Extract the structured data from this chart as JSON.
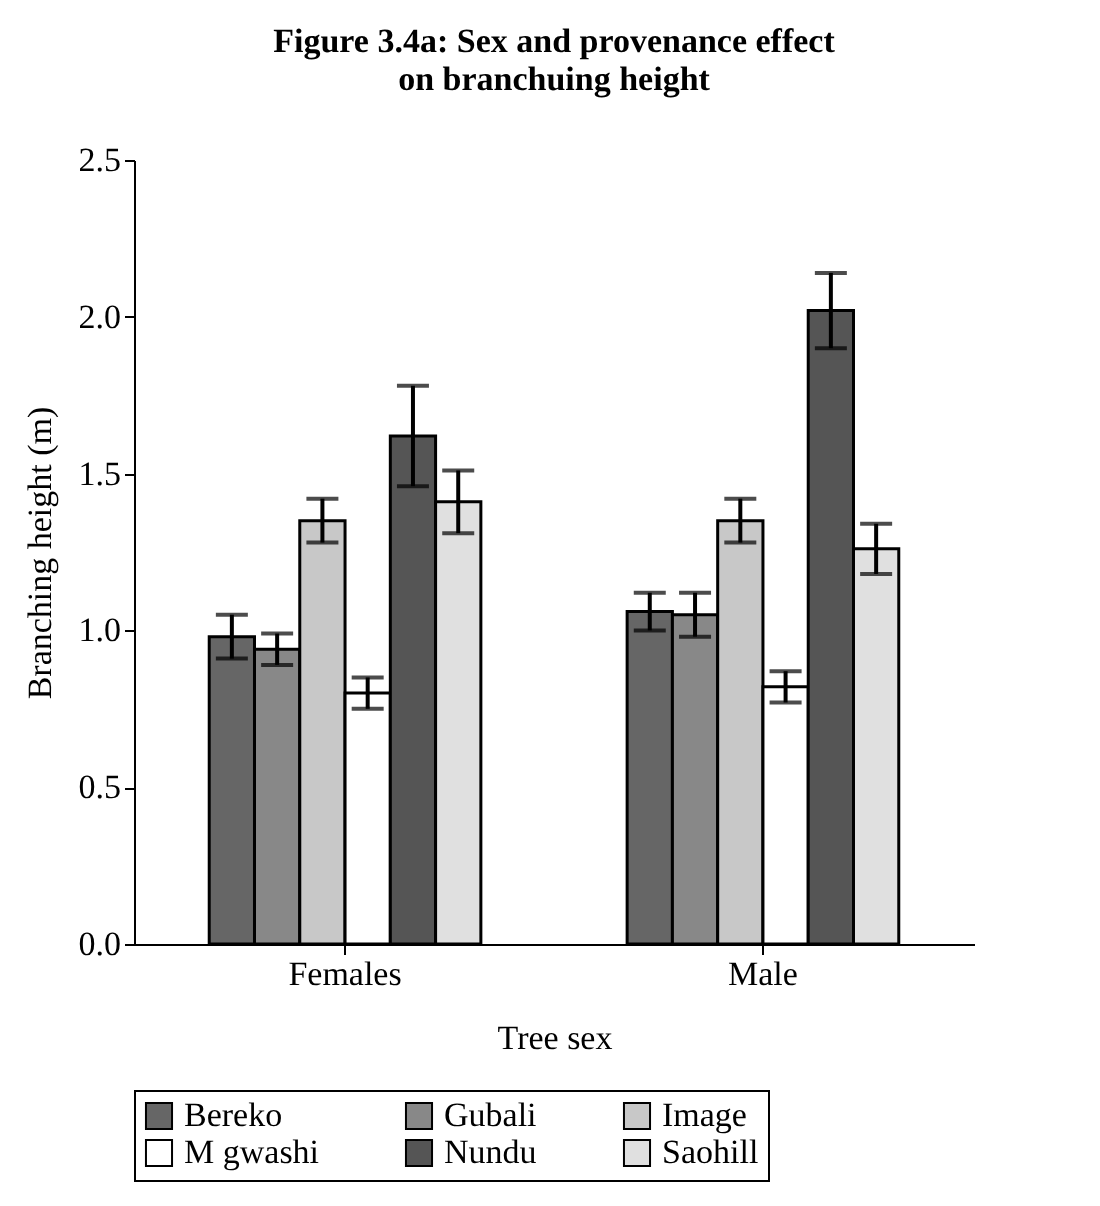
{
  "chart_data": {
    "type": "bar",
    "title": "Figure 3.4a: Sex and provenance effect on branchuing height",
    "xlabel": "Tree sex",
    "ylabel": "Branching height (m)",
    "categories": [
      "Females",
      "Male"
    ],
    "series": [
      {
        "name": "Bereko",
        "color": "#666666",
        "values": [
          0.98,
          1.06
        ],
        "errors": [
          0.07,
          0.06
        ]
      },
      {
        "name": "Gubali",
        "color": "#888888",
        "values": [
          0.94,
          1.05
        ],
        "errors": [
          0.05,
          0.07
        ]
      },
      {
        "name": "Image",
        "color": "#c8c8c8",
        "values": [
          1.35,
          1.35
        ],
        "errors": [
          0.07,
          0.07
        ]
      },
      {
        "name": "M gwashi",
        "color": "#ffffff",
        "values": [
          0.8,
          0.82
        ],
        "errors": [
          0.05,
          0.05
        ]
      },
      {
        "name": "Nundu",
        "color": "#555555",
        "values": [
          1.62,
          2.02
        ],
        "errors": [
          0.16,
          0.12
        ]
      },
      {
        "name": "Saohill",
        "color": "#e0e0e0",
        "values": [
          1.41,
          1.26
        ],
        "errors": [
          0.1,
          0.08
        ]
      }
    ],
    "ylim": [
      0,
      2.5
    ],
    "yticks": [
      {
        "value": 0,
        "label": "0.0"
      },
      0.5,
      {
        "value": 1,
        "label": "1.0"
      },
      1.5,
      {
        "value": 2,
        "label": "2.0"
      },
      2.5
    ],
    "legend": "bottom"
  }
}
